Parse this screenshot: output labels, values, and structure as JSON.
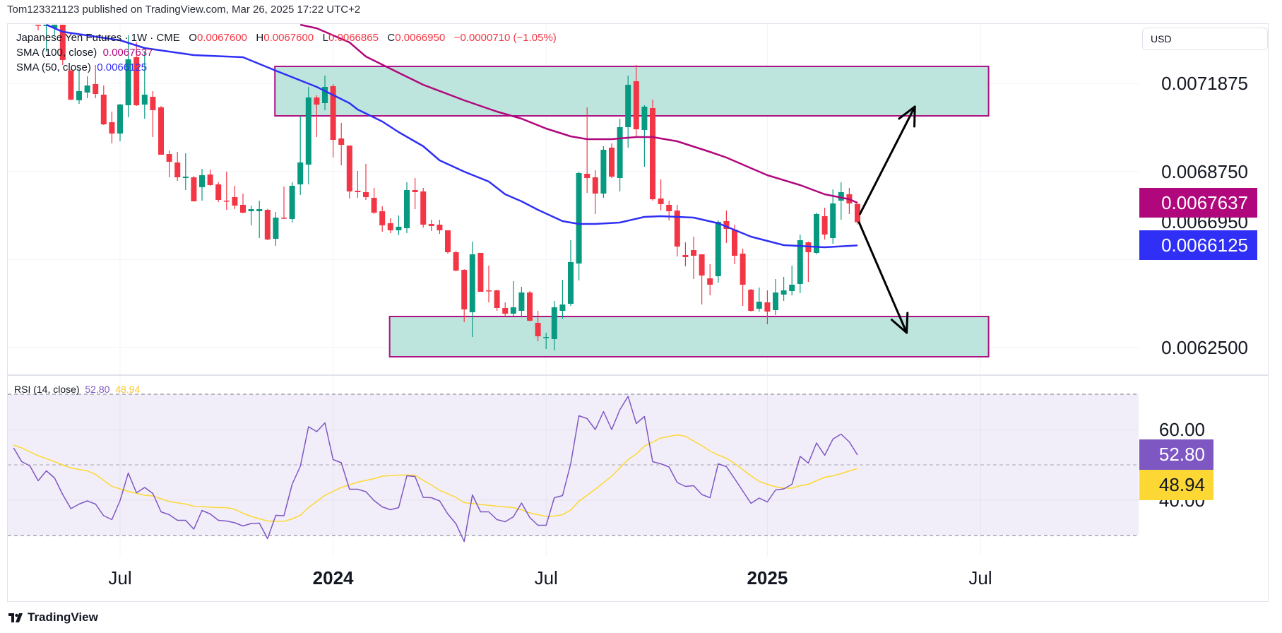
{
  "header": {
    "published": "Tom123321123 published on TradingView.com, Mar 26, 2025 17:22 UTC+2"
  },
  "legend": {
    "symbol": "Japanese Yen Futures · 1W · CME",
    "o_label": "O",
    "o": "0.0067600",
    "h_label": "H",
    "h": "0.0067600",
    "l_label": "L",
    "l": "0.0066865",
    "c_label": "C",
    "c": "0.0066950",
    "change": "−0.0000710 (−1.05%)",
    "sma100_label": "SMA (100, close)",
    "sma100_value": "0.0067637",
    "sma50_label": "SMA (50, close)",
    "sma50_value": "0.0066125",
    "rsi_label": "RSI (14, close)",
    "rsi_value": "52.80",
    "rsi_ma_value": "48.94"
  },
  "price_axis": {
    "currency": "USD",
    "labels": [
      "0.0071875",
      "0.0068750",
      "0.0066950",
      "0.0062500"
    ],
    "sma100_badge": "0.0067637",
    "sma50_badge": "0.0066125"
  },
  "rsi_axis": {
    "labels": [
      "60.00",
      "40.00"
    ],
    "rsi_badge": "52.80",
    "rsi_ma_badge": "48.94"
  },
  "time_axis": {
    "labels": [
      {
        "text": "Jul",
        "bar": 10,
        "bold": false
      },
      {
        "text": "2024",
        "bar": 36,
        "bold": true
      },
      {
        "text": "Jul",
        "bar": 62,
        "bold": false
      },
      {
        "text": "2025",
        "bar": 89,
        "bold": true
      },
      {
        "text": "Jul",
        "bar": 115,
        "bold": false
      }
    ]
  },
  "footer": {
    "brand": "TradingView"
  },
  "colors": {
    "up": "#089981",
    "down": "#f23645",
    "sma50": "#2f2ff5",
    "sma100": "#b0087c",
    "rsi": "#7e57c2",
    "rsi_ma": "#fdd835",
    "zone_fill": "#bde5dd",
    "zone_border": "#ad1283",
    "arrow": "#000000"
  },
  "chart_data": {
    "type": "candlestick",
    "symbol": "Japanese Yen Futures",
    "interval": "1W",
    "price_grid": [
      0.0071875,
      0.006875,
      0.0065625,
      0.00625
    ],
    "grid": true,
    "ohlc_order": [
      "open",
      "high",
      "low",
      "close"
    ],
    "candles": [
      [
        0.0073956,
        0.0073956,
        0.0073755,
        0.0073931
      ],
      [
        0.0073906,
        0.0073956,
        0.0073003,
        0.0073956
      ],
      [
        0.007383,
        0.0073956,
        0.007358,
        0.0073956
      ],
      [
        0.0073956,
        0.0073956,
        0.0072527,
        0.0072702
      ],
      [
        0.0072326,
        0.0072376,
        0.0071274,
        0.0071299
      ],
      [
        0.0071274,
        0.0072376,
        0.0071148,
        0.0071599
      ],
      [
        0.0071549,
        0.0072126,
        0.0071349,
        0.00718
      ],
      [
        0.007185,
        0.0072527,
        0.0071349,
        0.0071499
      ],
      [
        0.0071474,
        0.00718,
        0.0070396,
        0.0070421
      ],
      [
        0.0070496,
        0.0070872,
        0.0069744,
        0.0070095
      ],
      [
        0.0070095,
        0.0071148,
        0.006982,
        0.0071123
      ],
      [
        0.0071098,
        0.007358,
        0.0070672,
        0.0072727
      ],
      [
        0.0072803,
        0.0073329,
        0.0071073,
        0.0071098
      ],
      [
        0.0071123,
        0.0073003,
        0.0070622,
        0.0071474
      ],
      [
        0.0071399,
        0.0071599,
        0.006997,
        0.0070923
      ],
      [
        0.0071023,
        0.0071073,
        0.0069343,
        0.0069343
      ],
      [
        0.0069368,
        0.0069494,
        0.0068541,
        0.0069093
      ],
      [
        0.0069068,
        0.0069443,
        0.0068416,
        0.0068541
      ],
      [
        0.0068516,
        0.0069393,
        0.006809,
        0.0068566
      ],
      [
        0.0068541,
        0.0068591,
        0.0067689,
        0.0067689
      ],
      [
        0.006819,
        0.0068842,
        0.0067714,
        0.0068616
      ],
      [
        0.0068641,
        0.0068817,
        0.0068241,
        0.0068266
      ],
      [
        0.0068291,
        0.0068366,
        0.0067664,
        0.0067739
      ],
      [
        0.0067714,
        0.0068742,
        0.0067388,
        0.0067689
      ],
      [
        0.0067839,
        0.0068241,
        0.0067413,
        0.0067538
      ],
      [
        0.0067564,
        0.0067965,
        0.0067263,
        0.0067288
      ],
      [
        0.0067338,
        0.0067538,
        0.0066837,
        0.0067413
      ],
      [
        0.0067338,
        0.0067714,
        0.0066385,
        0.0067413
      ],
      [
        0.0067388,
        0.0067413,
        0.006631,
        0.0066335
      ],
      [
        0.006636,
        0.0067313,
        0.006611,
        0.0067112
      ],
      [
        0.0067112,
        0.0068215,
        0.0067062,
        0.0067087
      ],
      [
        0.0067062,
        0.0068366,
        0.0066937,
        0.0068241
      ],
      [
        0.0068291,
        0.0070722,
        0.0067915,
        0.0069068
      ],
      [
        0.0068992,
        0.007175,
        0.0068291,
        0.0071374
      ],
      [
        0.0071374,
        0.0071449,
        0.006997,
        0.0071123
      ],
      [
        0.0071173,
        0.0072151,
        0.0070923,
        0.007175
      ],
      [
        0.0071775,
        0.007185,
        0.0069243,
        0.006987
      ],
      [
        0.006992,
        0.0070471,
        0.0068967,
        0.0069694
      ],
      [
        0.0069669,
        0.0069669,
        0.0067789,
        0.006804
      ],
      [
        0.0068065,
        0.0068767,
        0.0067814,
        0.0068015
      ],
      [
        0.0068015,
        0.0069017,
        0.0067739,
        0.0067839
      ],
      [
        0.0067814,
        0.0068165,
        0.0067238,
        0.0067288
      ],
      [
        0.0067338,
        0.0067513,
        0.0066611,
        0.0066837
      ],
      [
        0.0066912,
        0.0067087,
        0.0066561,
        0.0066661
      ],
      [
        0.0066661,
        0.0067188,
        0.0066486,
        0.0066787
      ],
      [
        0.0066736,
        0.0068366,
        0.0066561,
        0.006809
      ],
      [
        0.006809,
        0.0068516,
        0.0067413,
        0.0068015
      ],
      [
        0.006804,
        0.0068165,
        0.0066761,
        0.0066862
      ],
      [
        0.0066887,
        0.0067037,
        0.0066636,
        0.0066812
      ],
      [
        0.0066862,
        0.0067037,
        0.0066536,
        0.0066661
      ],
      [
        0.0066661,
        0.0066661,
        0.0065834,
        0.0065884
      ],
      [
        0.0065884,
        0.0065934,
        0.0065207,
        0.0065232
      ],
      [
        0.0065257,
        0.0065282,
        0.0063403,
        0.0063854
      ],
      [
        0.0063753,
        0.006626,
        0.0062876,
        0.0065809
      ],
      [
        0.0065859,
        0.0065859,
        0.006448,
        0.006448
      ],
      [
        0.006453,
        0.0065408,
        0.0064104,
        0.0064505
      ],
      [
        0.006453,
        0.0064556,
        0.0063804,
        0.0063904
      ],
      [
        0.0063904,
        0.0064104,
        0.0063603,
        0.0063703
      ],
      [
        0.0063703,
        0.0064856,
        0.0063628,
        0.0063929
      ],
      [
        0.0063804,
        0.0064656,
        0.0063603,
        0.0064455
      ],
      [
        0.0064455,
        0.0064505,
        0.0063428,
        0.0063453
      ],
      [
        0.0063378,
        0.0063804,
        0.0062726,
        0.0062901
      ],
      [
        0.0062851,
        0.0063027,
        0.006245,
        0.0062876
      ],
      [
        0.0062801,
        0.0064154,
        0.00624,
        0.0063929
      ],
      [
        0.0063804,
        0.0064906,
        0.0063528,
        0.0064029
      ],
      [
        0.0064054,
        0.006631,
        0.0063979,
        0.0065533
      ],
      [
        0.0065483,
        0.0068742,
        0.0064881,
        0.0068692
      ],
      [
        0.0068667,
        0.0071023,
        0.006799,
        0.0068516
      ],
      [
        0.0068541,
        0.0068792,
        0.0067238,
        0.0067965
      ],
      [
        0.0067965,
        0.0069644,
        0.0067814,
        0.0069519
      ],
      [
        0.0069594,
        0.0069744,
        0.0068516,
        0.0068566
      ],
      [
        0.0068516,
        0.0070622,
        0.006804,
        0.0070321
      ],
      [
        0.0070321,
        0.0072151,
        0.0069594,
        0.0071825
      ],
      [
        0.007195,
        0.0072527,
        0.006997,
        0.0070246
      ],
      [
        0.0070221,
        0.0071098,
        0.0068917,
        0.0071048
      ],
      [
        0.0070998,
        0.0071299,
        0.0067714,
        0.0067764
      ],
      [
        0.0067789,
        0.0068466,
        0.0067363,
        0.0067589
      ],
      [
        0.0067564,
        0.0067714,
        0.0067012,
        0.0067338
      ],
      [
        0.0067363,
        0.0067564,
        0.0065734,
        0.0066085
      ],
      [
        0.0065784,
        0.0066235,
        0.0065383,
        0.0065709
      ],
      [
        0.0065959,
        0.0066436,
        0.0064932,
        0.0065759
      ],
      [
        0.0065809,
        0.0065809,
        0.0064029,
        0.0065057
      ],
      [
        0.0064957,
        0.0065458,
        0.0064355,
        0.0064731
      ],
      [
        0.0065032,
        0.0067012,
        0.0064806,
        0.0066962
      ],
      [
        0.0066987,
        0.0067363,
        0.006621,
        0.0066711
      ],
      [
        0.0066686,
        0.0066862,
        0.0065458,
        0.0065759
      ],
      [
        0.0065834,
        0.0066009,
        0.0063979,
        0.0064731
      ],
      [
        0.0064556,
        0.0064581,
        0.0063779,
        0.0063804
      ],
      [
        0.0063879,
        0.0064631,
        0.0063779,
        0.0064129
      ],
      [
        0.0064104,
        0.006453,
        0.0063327,
        0.0063779
      ],
      [
        0.0063829,
        0.0064932,
        0.0063653,
        0.0064455
      ],
      [
        0.006438,
        0.0065007,
        0.0064154,
        0.006453
      ],
      [
        0.0064505,
        0.0065408,
        0.0064355,
        0.0064731
      ],
      [
        0.0064756,
        0.0066511,
        0.006443,
        0.006631
      ],
      [
        0.0066235,
        0.006626,
        0.0064831,
        0.0065884
      ],
      [
        0.0065859,
        0.0067288,
        0.0065809,
        0.0067238
      ],
      [
        0.0067162,
        0.0067463,
        0.0066335,
        0.0066511
      ],
      [
        0.0066385,
        0.0068115,
        0.0066185,
        0.0067614
      ],
      [
        0.0067714,
        0.0068366,
        0.0067037,
        0.0068015
      ],
      [
        0.006794,
        0.0068165,
        0.0067238,
        0.0067614
      ],
      [
        0.00676,
        0.00676,
        0.0066865,
        0.006695
      ]
    ],
    "sma50": [
      [
        1,
        0.0073956
      ],
      [
        3,
        0.0073705
      ],
      [
        10,
        0.0073405
      ],
      [
        13,
        0.0073128
      ],
      [
        19,
        0.0072878
      ],
      [
        25,
        0.0072803
      ],
      [
        29,
        0.0072326
      ],
      [
        34,
        0.007175
      ],
      [
        38,
        0.0071173
      ],
      [
        39,
        0.0070948
      ],
      [
        42,
        0.0070521
      ],
      [
        44,
        0.0070146
      ],
      [
        47,
        0.0069644
      ],
      [
        49,
        0.0069143
      ],
      [
        52,
        0.0068742
      ],
      [
        55,
        0.0068391
      ],
      [
        57,
        0.006794
      ],
      [
        59,
        0.0067689
      ],
      [
        61,
        0.0067388
      ],
      [
        64,
        0.0066987
      ],
      [
        66,
        0.0066887
      ],
      [
        68,
        0.0066887
      ],
      [
        71,
        0.0066937
      ],
      [
        74,
        0.0067137
      ],
      [
        76,
        0.0067162
      ],
      [
        80,
        0.0067112
      ],
      [
        83,
        0.0066912
      ],
      [
        87,
        0.0066436
      ],
      [
        91,
        0.0066135
      ],
      [
        96,
        0.006606
      ],
      [
        100,
        0.0066125
      ]
    ],
    "sma100": [
      [
        32,
        0.0073956
      ],
      [
        34,
        0.007383
      ],
      [
        38,
        0.0073329
      ],
      [
        40,
        0.0072828
      ],
      [
        44,
        0.0072251
      ],
      [
        47,
        0.0071825
      ],
      [
        52,
        0.0071274
      ],
      [
        56,
        0.0070872
      ],
      [
        59,
        0.0070622
      ],
      [
        62,
        0.0070271
      ],
      [
        65,
        0.0069995
      ],
      [
        67,
        0.0069895
      ],
      [
        70,
        0.0069895
      ],
      [
        73,
        0.006997
      ],
      [
        75,
        0.006997
      ],
      [
        78,
        0.006982
      ],
      [
        82,
        0.0069443
      ],
      [
        84,
        0.0069243
      ],
      [
        89,
        0.0068616
      ],
      [
        93,
        0.0068266
      ],
      [
        96,
        0.006794
      ],
      [
        99,
        0.0067764
      ],
      [
        100,
        0.0067637
      ]
    ],
    "zones": [
      {
        "bar_from": 28.9,
        "bar_to": 116,
        "price_top": 0.0072477,
        "price_bottom": 0.0070722
      },
      {
        "bar_from": 42.9,
        "bar_to": 116,
        "price_top": 0.0063603,
        "price_bottom": 0.0062174
      }
    ],
    "arrows": [
      {
        "from": [
          100.3,
          0.0067238
        ],
        "to": [
          107,
          0.0071048
        ]
      },
      {
        "from": [
          100.2,
          0.0066937
        ],
        "to": [
          106,
          0.0063027
        ]
      }
    ],
    "rsi": {
      "period": 14,
      "levels": {
        "upper": 70,
        "middle": 50,
        "lower": 30
      },
      "grid": [
        60,
        40
      ],
      "first_bar": -3,
      "values": [
        54.8,
        50.9,
        49.7,
        45.5,
        48.3,
        46.3,
        41.6,
        37.6,
        38.9,
        39.8,
        38.9,
        35.6,
        34.5,
        39.9,
        47.7,
        42.1,
        43.6,
        41.9,
        36.7,
        35.9,
        34.3,
        34.3,
        31.8,
        37.1,
        36.1,
        34.3,
        34.1,
        33.6,
        32.7,
        33.4,
        33.5,
        29.1,
        35.7,
        35.6,
        44.5,
        49.6,
        60.8,
        59.4,
        61.9,
        51.5,
        50.6,
        43.1,
        43.1,
        42.4,
        39.9,
        38.1,
        37.3,
        37.9,
        46.9,
        46.7,
        40.8,
        40.7,
        39.8,
        36.1,
        33.3,
        28.3,
        41.5,
        36.7,
        36.7,
        34.5,
        33.9,
        35.3,
        39.2,
        35.1,
        32.9,
        32.9,
        40.7,
        41.3,
        50.3,
        63.9,
        63.1,
        60.0,
        65.1,
        60.0,
        65.6,
        69.4,
        61.7,
        63.7,
        50.9,
        50.3,
        49.4,
        45.0,
        43.9,
        44.1,
        41.6,
        40.7,
        50.3,
        49.5,
        46.1,
        42.6,
        39.1,
        40.6,
        39.5,
        42.9,
        43.2,
        44.5,
        52.4,
        50.5,
        56.2,
        52.7,
        57.3,
        58.7,
        56.5,
        52.8
      ],
      "ma": [
        [
          -3,
          55.6
        ],
        [
          -2,
          54.8
        ],
        [
          0,
          52.6
        ],
        [
          2,
          50.9
        ],
        [
          4,
          49.1
        ],
        [
          6,
          48.3
        ],
        [
          7,
          47.3
        ],
        [
          9,
          43.9
        ],
        [
          11,
          42.5
        ],
        [
          13,
          41.4
        ],
        [
          14,
          41.2
        ],
        [
          16,
          39.6
        ],
        [
          18,
          38.9
        ],
        [
          19,
          38.3
        ],
        [
          22,
          37.9
        ],
        [
          23,
          37.9
        ],
        [
          24,
          37.4
        ],
        [
          25,
          36.3
        ],
        [
          26,
          35.4
        ],
        [
          28,
          34.1
        ],
        [
          30,
          34.0
        ],
        [
          31,
          34.7
        ],
        [
          32,
          35.7
        ],
        [
          33,
          37.9
        ],
        [
          35,
          41.4
        ],
        [
          37,
          43.6
        ],
        [
          39,
          45.1
        ],
        [
          41,
          46.1
        ],
        [
          42,
          46.8
        ],
        [
          44,
          47.1
        ],
        [
          46,
          47.1
        ],
        [
          47,
          45.6
        ],
        [
          48,
          44.3
        ],
        [
          49,
          42.8
        ],
        [
          51,
          40.8
        ],
        [
          52,
          39.3
        ],
        [
          54,
          38.8
        ],
        [
          56,
          38.3
        ],
        [
          58,
          37.9
        ],
        [
          59,
          37.3
        ],
        [
          60,
          36.4
        ],
        [
          62,
          35.4
        ],
        [
          63,
          35.5
        ],
        [
          64,
          35.9
        ],
        [
          65,
          37.2
        ],
        [
          66,
          39.7
        ],
        [
          68,
          43.1
        ],
        [
          70,
          46.8
        ],
        [
          72,
          51.5
        ],
        [
          73,
          53.1
        ],
        [
          74,
          55.3
        ],
        [
          76,
          57.6
        ],
        [
          78,
          58.5
        ],
        [
          79,
          58.1
        ],
        [
          81,
          55.4
        ],
        [
          82,
          53.9
        ],
        [
          83,
          52.8
        ],
        [
          84,
          51.9
        ],
        [
          85,
          50.4
        ],
        [
          87,
          46.9
        ],
        [
          88,
          45.3
        ],
        [
          89,
          44.5
        ],
        [
          90,
          43.8
        ],
        [
          91,
          43.4
        ],
        [
          92,
          43.4
        ],
        [
          93,
          44.1
        ],
        [
          94,
          44.5
        ],
        [
          95,
          45.5
        ],
        [
          96,
          46.5
        ],
        [
          97,
          46.9
        ],
        [
          98,
          47.5
        ],
        [
          99,
          48.3
        ],
        [
          100,
          48.94
        ]
      ]
    }
  }
}
